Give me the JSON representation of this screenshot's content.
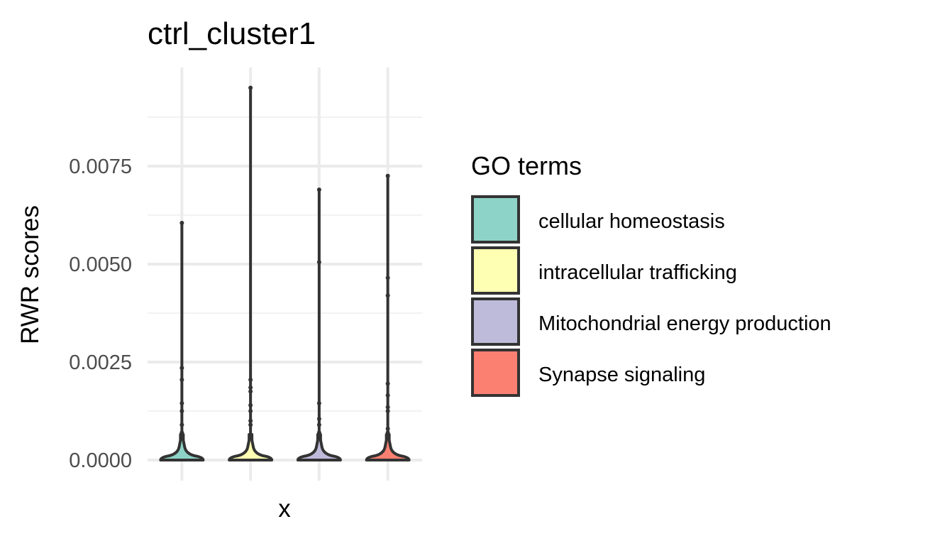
{
  "chart_data": {
    "type": "violin",
    "title": "ctrl_cluster1",
    "xlabel": "x",
    "ylabel": "RWR scores",
    "ylim": [
      -0.0008,
      0.0101
    ],
    "y_ticks": [
      "0.0000",
      "0.0025",
      "0.0050",
      "0.0075"
    ],
    "grid": true,
    "legend": {
      "title": "GO terms",
      "placement": "right"
    },
    "series": [
      {
        "name": "cellular homeostasis",
        "color": "#8DD3C7",
        "max": 0.00605,
        "outliers": [
          0.00235,
          0.00205,
          0.00145,
          0.00125,
          0.0009,
          0.0007,
          0.0006
        ]
      },
      {
        "name": "intracellular trafficking",
        "color": "#FFFFB3",
        "max": 0.0095,
        "outliers": [
          0.00205,
          0.00185,
          0.00175,
          0.0014,
          0.00125,
          0.001,
          0.0009
        ]
      },
      {
        "name": "Mitochondrial energy production",
        "color": "#BEBADA",
        "max": 0.0069,
        "outliers": [
          0.00505,
          0.00145,
          0.00105,
          0.0009,
          0.0007
        ]
      },
      {
        "name": "Synapse signaling",
        "color": "#FB8072",
        "max": 0.00725,
        "outliers": [
          0.00465,
          0.0042,
          0.00195,
          0.00165,
          0.00135,
          0.00125,
          0.0008,
          0.0007
        ]
      }
    ]
  }
}
